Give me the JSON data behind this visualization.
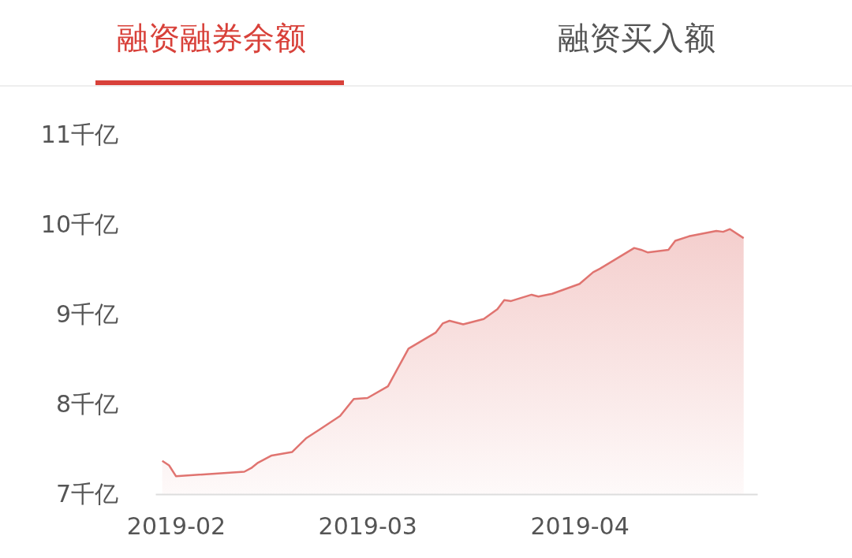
{
  "chart_data": {
    "type": "area",
    "title": "融资融券余额",
    "annotations": [
      "融资买入额"
    ],
    "x": [
      "2019-01-30",
      "2019-01-31",
      "2019-02-01",
      "2019-02-11",
      "2019-02-12",
      "2019-02-13",
      "2019-02-15",
      "2019-02-18",
      "2019-02-20",
      "2019-02-22",
      "2019-02-25",
      "2019-02-27",
      "2019-03-01",
      "2019-03-04",
      "2019-03-07",
      "2019-03-11",
      "2019-03-12",
      "2019-03-13",
      "2019-03-15",
      "2019-03-18",
      "2019-03-20",
      "2019-03-21",
      "2019-03-22",
      "2019-03-25",
      "2019-03-26",
      "2019-03-28",
      "2019-04-01",
      "2019-04-03",
      "2019-04-04",
      "2019-04-09",
      "2019-04-10",
      "2019-04-11",
      "2019-04-14",
      "2019-04-15",
      "2019-04-17",
      "2019-04-21",
      "2019-04-22",
      "2019-04-23",
      "2019-04-25"
    ],
    "series": [
      {
        "color": "#e07470",
        "values": [
          7.37,
          7.32,
          7.2,
          7.25,
          7.29,
          7.35,
          7.43,
          7.47,
          7.62,
          7.72,
          7.87,
          8.06,
          8.07,
          8.2,
          8.62,
          8.8,
          8.9,
          8.93,
          8.89,
          8.95,
          9.06,
          9.16,
          9.15,
          9.22,
          9.2,
          9.23,
          9.34,
          9.47,
          9.51,
          9.74,
          9.72,
          9.69,
          9.72,
          9.82,
          9.87,
          9.93,
          9.92,
          9.95,
          9.85
        ]
      }
    ],
    "xlim": [
      "2019-01-29",
      "2019-04-27"
    ],
    "xticks": [
      {
        "value": "2019-02-01",
        "label": "2019-02"
      },
      {
        "value": "2019-03-01",
        "label": "2019-03"
      },
      {
        "value": "2019-04-01",
        "label": "2019-04"
      }
    ],
    "ylim": [
      7,
      11
    ],
    "yticks": [
      {
        "value": 7,
        "label": "7千亿"
      },
      {
        "value": 8,
        "label": "8千亿"
      },
      {
        "value": 9,
        "label": "9千亿"
      },
      {
        "value": 10,
        "label": "10千亿"
      },
      {
        "value": 11,
        "label": "11千亿"
      }
    ],
    "grid": false
  }
}
